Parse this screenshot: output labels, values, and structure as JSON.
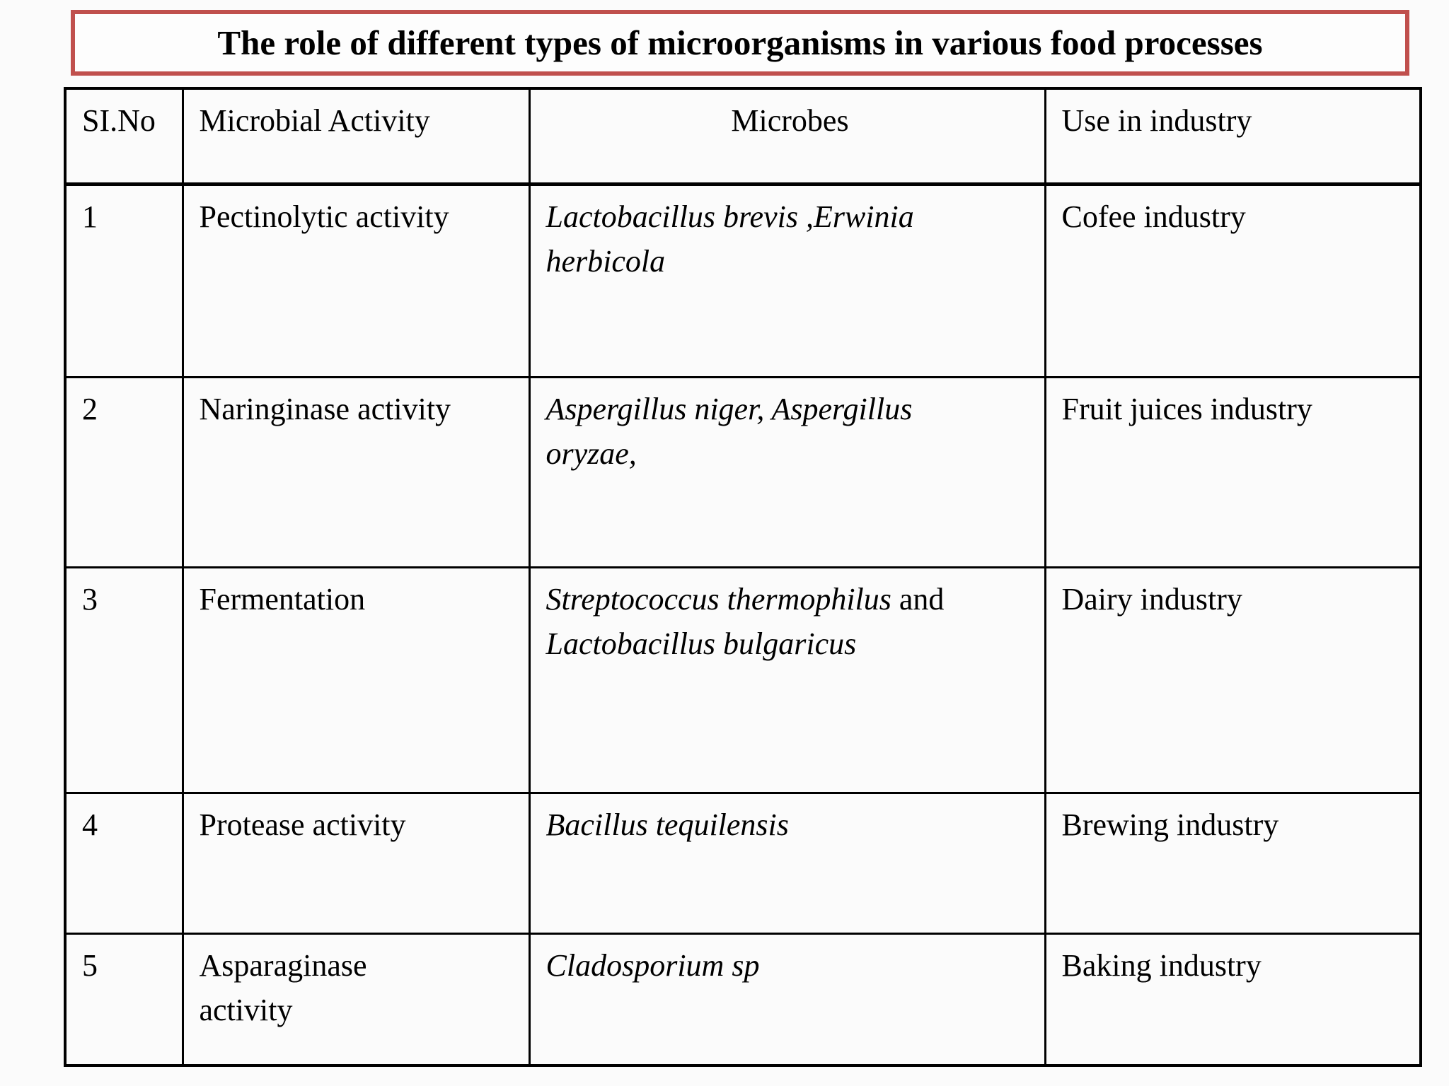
{
  "title": "The role of different types of microorganisms in various food processes",
  "colors": {
    "title_border": "#c0504d",
    "grid": "#000000",
    "text": "#000000",
    "background": "#fbfbfb"
  },
  "table": {
    "headers": [
      "SI.No",
      "Microbial Activity",
      "Microbes",
      "Use in industry"
    ],
    "rows": [
      {
        "no": "1",
        "activity": "Pectinolytic activity",
        "microbes": [
          {
            "text": "Lactobacillus brevis ,Erwinia\nherbicola",
            "italic": true
          }
        ],
        "industry": "Cofee industry"
      },
      {
        "no": "2",
        "activity": "Naringinase activity",
        "microbes": [
          {
            "text": "Aspergillus niger, Aspergillus\noryzae,",
            "italic": true
          }
        ],
        "industry": "Fruit juices industry"
      },
      {
        "no": "3",
        "activity": "Fermentation",
        "microbes": [
          {
            "text": "Streptococcus thermophilus",
            "italic": true
          },
          {
            "text": " and\n",
            "italic": false
          },
          {
            "text": "Lactobacillus bulgaricus",
            "italic": true
          }
        ],
        "industry": "Dairy industry"
      },
      {
        "no": "4",
        "activity": "Protease activity",
        "microbes": [
          {
            "text": "Bacillus tequilensis",
            "italic": true
          }
        ],
        "industry": "Brewing industry"
      },
      {
        "no": "5",
        "activity": "Asparaginase\nactivity",
        "microbes": [
          {
            "text": "Cladosporium sp",
            "italic": true
          }
        ],
        "industry": "Baking industry"
      }
    ]
  }
}
